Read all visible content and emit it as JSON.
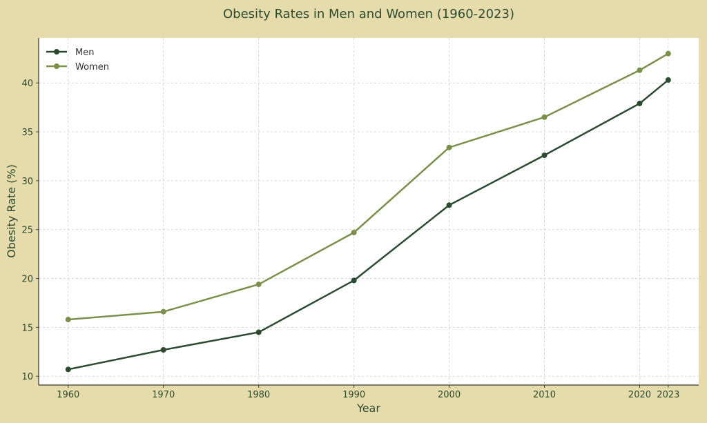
{
  "chart_data": {
    "type": "line",
    "title": "Obesity Rates in Men and Women (1960-2023)",
    "xlabel": "Year",
    "ylabel": "Obesity Rate (%)",
    "x": [
      1960,
      1970,
      1980,
      1990,
      2000,
      2010,
      2020,
      2023
    ],
    "xticks": [
      1960,
      1970,
      1980,
      1990,
      2000,
      2010,
      2020,
      2023
    ],
    "yticks": [
      10,
      15,
      20,
      25,
      30,
      35,
      40
    ],
    "xlim": [
      1956.9,
      2026.2
    ],
    "ylim": [
      9.1,
      44.6
    ],
    "grid": true,
    "legend_position": "top-left",
    "series": [
      {
        "name": "Men",
        "color": "#2b4a2f",
        "values": [
          10.7,
          12.7,
          14.5,
          19.8,
          27.5,
          32.6,
          37.9,
          40.3
        ]
      },
      {
        "name": "Women",
        "color": "#7a8f48",
        "values": [
          15.8,
          16.6,
          19.4,
          24.7,
          33.4,
          36.5,
          41.3,
          43.0
        ]
      }
    ],
    "colors": {
      "background": "#e6dbab",
      "plot_background": "#ffffff",
      "text": "#2b4a2f"
    }
  }
}
